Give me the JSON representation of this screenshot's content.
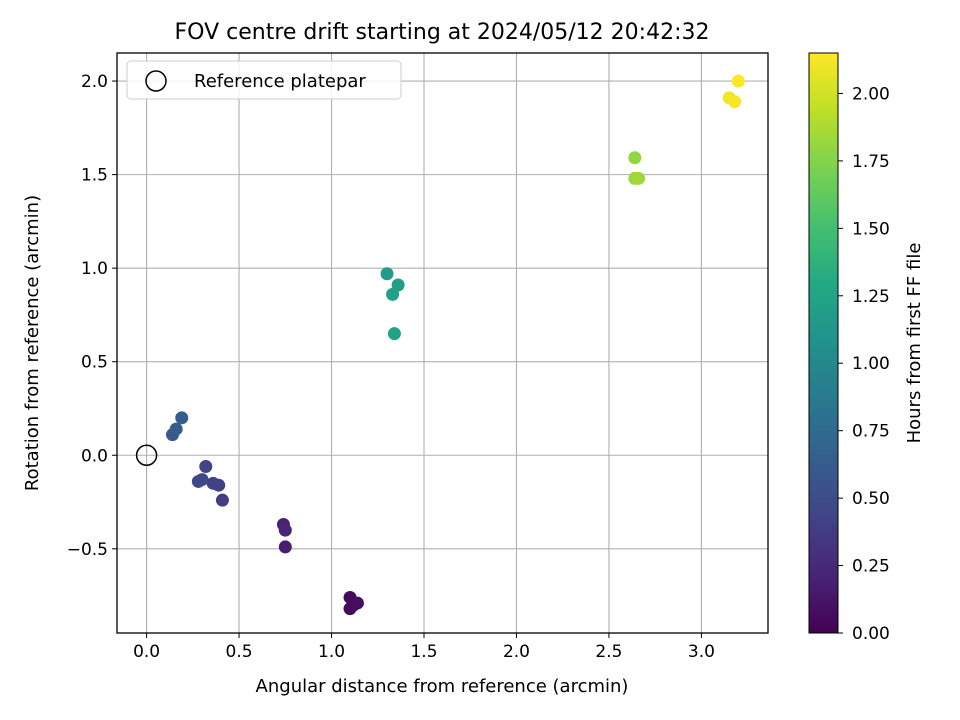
{
  "chart_data": {
    "type": "scatter",
    "title": "FOV centre drift starting at 2024/05/12 20:42:32",
    "xlabel": "Angular distance from reference (arcmin)",
    "ylabel": "Rotation from reference (arcmin)",
    "xlim": [
      -0.16,
      3.36
    ],
    "ylim": [
      -0.95,
      2.15
    ],
    "xticks": [
      0.0,
      0.5,
      1.0,
      1.5,
      2.0,
      2.5,
      3.0
    ],
    "xtick_labels": [
      "0.0",
      "0.5",
      "1.0",
      "1.5",
      "2.0",
      "2.5",
      "3.0"
    ],
    "yticks": [
      -0.5,
      0.0,
      0.5,
      1.0,
      1.5,
      2.0
    ],
    "ytick_labels": [
      "−0.5",
      "0.0",
      "0.5",
      "1.0",
      "1.5",
      "2.0"
    ],
    "grid": true,
    "legend": {
      "position": "top-left",
      "entries": [
        {
          "label": "Reference platepar",
          "marker": "open-circle"
        }
      ]
    },
    "reference_point": {
      "x": 0.0,
      "y": 0.0
    },
    "colorbar": {
      "label": "Hours from first FF file",
      "colormap": "viridis",
      "range": [
        0.0,
        2.15
      ],
      "ticks": [
        0.0,
        0.25,
        0.5,
        0.75,
        1.0,
        1.25,
        1.5,
        1.75,
        2.0
      ],
      "tick_labels": [
        "0.00",
        "0.25",
        "0.50",
        "0.75",
        "1.00",
        "1.25",
        "1.50",
        "1.75",
        "2.00"
      ]
    },
    "points": [
      {
        "x": 1.12,
        "y": -0.8,
        "c": 0.02
      },
      {
        "x": 1.1,
        "y": -0.82,
        "c": 0.04
      },
      {
        "x": 1.1,
        "y": -0.76,
        "c": 0.06
      },
      {
        "x": 1.14,
        "y": -0.79,
        "c": 0.08
      },
      {
        "x": 0.75,
        "y": -0.49,
        "c": 0.18
      },
      {
        "x": 0.74,
        "y": -0.37,
        "c": 0.2
      },
      {
        "x": 0.75,
        "y": -0.4,
        "c": 0.22
      },
      {
        "x": 0.41,
        "y": -0.24,
        "c": 0.38
      },
      {
        "x": 0.39,
        "y": -0.16,
        "c": 0.4
      },
      {
        "x": 0.36,
        "y": -0.15,
        "c": 0.42
      },
      {
        "x": 0.32,
        "y": -0.06,
        "c": 0.44
      },
      {
        "x": 0.3,
        "y": -0.13,
        "c": 0.46
      },
      {
        "x": 0.28,
        "y": -0.14,
        "c": 0.48
      },
      {
        "x": 0.14,
        "y": 0.11,
        "c": 0.6
      },
      {
        "x": 0.16,
        "y": 0.14,
        "c": 0.62
      },
      {
        "x": 0.19,
        "y": 0.2,
        "c": 0.64
      },
      {
        "x": 1.3,
        "y": 0.97,
        "c": 1.18
      },
      {
        "x": 1.36,
        "y": 0.91,
        "c": 1.2
      },
      {
        "x": 1.33,
        "y": 0.86,
        "c": 1.22
      },
      {
        "x": 1.34,
        "y": 0.65,
        "c": 1.24
      },
      {
        "x": 2.64,
        "y": 1.59,
        "c": 1.8
      },
      {
        "x": 2.64,
        "y": 1.48,
        "c": 1.82
      },
      {
        "x": 2.66,
        "y": 1.48,
        "c": 1.84
      },
      {
        "x": 3.15,
        "y": 1.91,
        "c": 2.12
      },
      {
        "x": 3.18,
        "y": 1.89,
        "c": 2.13
      },
      {
        "x": 3.2,
        "y": 2.0,
        "c": 2.14
      }
    ]
  }
}
